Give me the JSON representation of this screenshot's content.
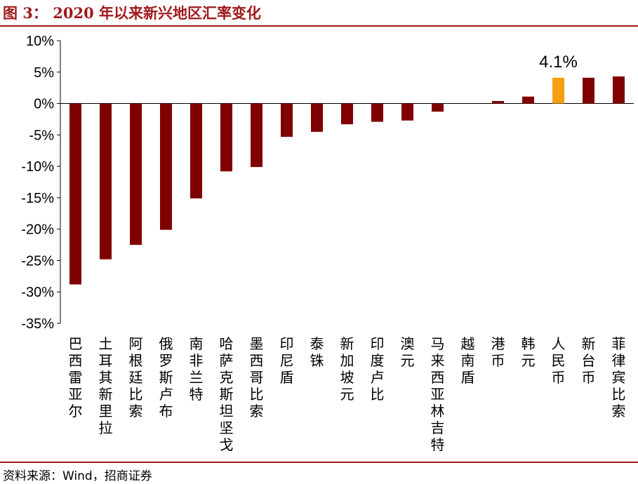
{
  "title": "图 3：  2020 年以来新兴地区汇率变化",
  "source": "资料来源：Wind，招商证券",
  "colors": {
    "accent": "#a0191b",
    "bar": "#7f0000",
    "highlight": "#f5a010",
    "axis": "#000000"
  },
  "chart_data": {
    "type": "bar",
    "title": "2020 年以来新兴地区汇率变化",
    "xlabel": "",
    "ylabel": "",
    "ylim": [
      -35,
      10
    ],
    "ytick_values": [
      10,
      5,
      0,
      -5,
      -10,
      -15,
      -20,
      -25,
      -30,
      -35
    ],
    "ytick_labels": [
      "10%",
      "5%",
      "0%",
      "-5%",
      "-10%",
      "-15%",
      "-20%",
      "-25%",
      "-30%",
      "-35%"
    ],
    "grid": false,
    "categories": [
      "巴西雷亚尔",
      "土耳其新里拉",
      "阿根廷比索",
      "俄罗斯卢布",
      "南非兰特",
      "哈萨克斯坦坚戈",
      "墨西哥比索",
      "印尼盾",
      "泰铢",
      "新加坡元",
      "印度卢比",
      "澳元",
      "马来西亚林吉特",
      "越南盾",
      "港币",
      "韩元",
      "人民币",
      "新台币",
      "菲律宾比索"
    ],
    "values": [
      -28.8,
      -24.8,
      -22.5,
      -20.1,
      -15.1,
      -10.8,
      -10.1,
      -5.3,
      -4.5,
      -3.3,
      -2.9,
      -2.7,
      -1.3,
      0.0,
      0.4,
      1.1,
      4.1,
      4.1,
      4.3
    ],
    "highlight_index": 16,
    "annotations": [
      {
        "category": "人民币",
        "text": "4.1%"
      }
    ]
  }
}
